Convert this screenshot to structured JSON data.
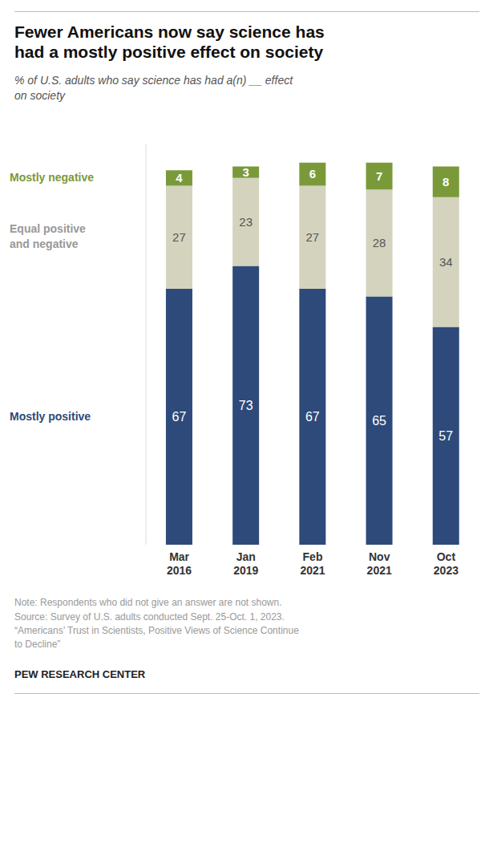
{
  "chart_data": {
    "type": "bar",
    "stacked": true,
    "title": "Fewer Americans now say science has\nhad a mostly positive effect on society",
    "subtitle": "% of U.S. adults who say science has had a(n) __ effect\non society",
    "note": "Note: Respondents who did not give an answer are not shown.\nSource: Survey of U.S. adults conducted Sept. 25-Oct. 1, 2023.\n“Americans’ Trust in Scientists, Positive Views of Science Continue\nto Decline”",
    "source": "PEW RESEARCH CENTER",
    "categories": [
      "Mar\n2016",
      "Jan\n2019",
      "Feb\n2021",
      "Nov\n2021",
      "Oct\n2023"
    ],
    "series": [
      {
        "name": "Mostly positive",
        "color": "#2E4A7A",
        "values": [
          67,
          73,
          67,
          65,
          57
        ]
      },
      {
        "name": "Equal positive\nand negative",
        "color": "#D4D3BE",
        "values": [
          27,
          23,
          27,
          28,
          34
        ]
      },
      {
        "name": "Mostly negative",
        "color": "#7A9A3A",
        "values": [
          4,
          3,
          6,
          7,
          8
        ]
      }
    ],
    "ylim": [
      0,
      105
    ],
    "data_labels": true,
    "tick_labels": "x",
    "grid": false
  }
}
